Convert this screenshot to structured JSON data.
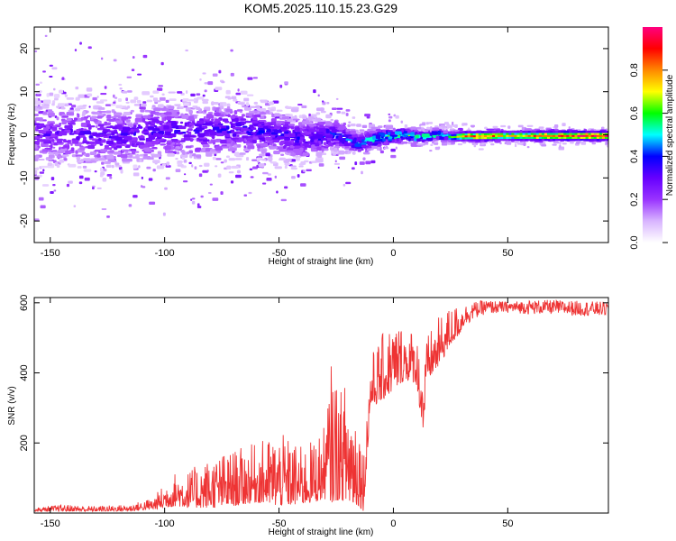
{
  "figure": {
    "title": "KOM5.2025.110.15.23.G29"
  },
  "chart_data": [
    {
      "type": "heatmap",
      "xlabel": "Height of straight line (km)",
      "ylabel": "Frequency (Hz)",
      "xlim": [
        -157,
        94
      ],
      "ylim": [
        -25,
        25
      ],
      "x_ticks": [
        -150,
        -100,
        -50,
        0,
        50
      ],
      "y_ticks": [
        -20,
        -10,
        0,
        10,
        20
      ],
      "colorbar": {
        "label": "Normalized spectral amplitude",
        "range": [
          0,
          1
        ],
        "ticks": [
          0.0,
          0.2,
          0.4,
          0.6,
          0.8
        ]
      },
      "colormap": [
        "#ffffff",
        "#d8b4ff",
        "#9933ff",
        "#6600ff",
        "#0000ff",
        "#00ffff",
        "#00ff00",
        "#ffff00",
        "#ff8800",
        "#ff0000",
        "#ff0080"
      ],
      "band_center_hz": [
        [
          -157,
          0.5
        ],
        [
          -140,
          0.0
        ],
        [
          -120,
          -0.5
        ],
        [
          -100,
          1.0
        ],
        [
          -85,
          0.5
        ],
        [
          -70,
          1.5
        ],
        [
          -55,
          0.5
        ],
        [
          -40,
          -1.0
        ],
        [
          -25,
          0.0
        ],
        [
          -15,
          -2.0
        ],
        [
          -5,
          -0.5
        ],
        [
          5,
          0.0
        ],
        [
          12,
          -0.5
        ],
        [
          20,
          0.0
        ],
        [
          25,
          -0.5
        ],
        [
          30,
          -0.3
        ],
        [
          50,
          -0.2
        ],
        [
          94,
          -0.2
        ]
      ],
      "band_spread_hz": [
        [
          -157,
          4.5
        ],
        [
          -100,
          4.0
        ],
        [
          -60,
          3.5
        ],
        [
          -30,
          2.5
        ],
        [
          -15,
          1.5
        ],
        [
          0,
          0.9
        ],
        [
          25,
          0.6
        ],
        [
          94,
          0.5
        ]
      ],
      "band_amplitude": [
        [
          -157,
          0.28
        ],
        [
          -100,
          0.32
        ],
        [
          -40,
          0.35
        ],
        [
          -20,
          0.4
        ],
        [
          -10,
          0.5
        ],
        [
          0,
          0.62
        ],
        [
          10,
          0.6
        ],
        [
          25,
          0.55
        ],
        [
          30,
          0.78
        ],
        [
          40,
          0.85
        ],
        [
          50,
          0.7
        ],
        [
          60,
          0.8
        ],
        [
          80,
          0.9
        ],
        [
          94,
          0.92
        ]
      ]
    },
    {
      "type": "line",
      "xlabel": "Height of straight line (km)",
      "ylabel": "SNR (v/v)",
      "xlim": [
        -157,
        94
      ],
      "ylim": [
        0,
        615
      ],
      "x_ticks": [
        -150,
        -100,
        -50,
        0,
        50
      ],
      "y_ticks": [
        200,
        400,
        600
      ],
      "line_color": "#ee3333",
      "series": [
        {
          "x": [
            -157,
            -145,
            -130,
            -115,
            -105,
            -100,
            -95,
            -90,
            -80,
            -70,
            -60,
            -50,
            -40,
            -35,
            -30,
            -27,
            -23,
            -20,
            -15,
            -13,
            -10,
            -5,
            0,
            5,
            10,
            13,
            15,
            20,
            25,
            30,
            35,
            40,
            50,
            60,
            70,
            80,
            94
          ],
          "envelope_low": [
            5,
            5,
            5,
            6,
            10,
            15,
            20,
            15,
            15,
            20,
            30,
            20,
            25,
            30,
            40,
            30,
            40,
            25,
            20,
            5,
            300,
            320,
            350,
            380,
            370,
            230,
            380,
            420,
            480,
            520,
            550,
            565,
            570,
            565,
            565,
            560,
            560
          ],
          "envelope_high": [
            15,
            25,
            20,
            25,
            45,
            85,
            120,
            120,
            160,
            180,
            200,
            230,
            190,
            210,
            250,
            440,
            350,
            400,
            300,
            180,
            450,
            510,
            550,
            540,
            520,
            420,
            510,
            560,
            590,
            595,
            605,
            610,
            605,
            610,
            610,
            608,
            605
          ]
        }
      ]
    }
  ]
}
